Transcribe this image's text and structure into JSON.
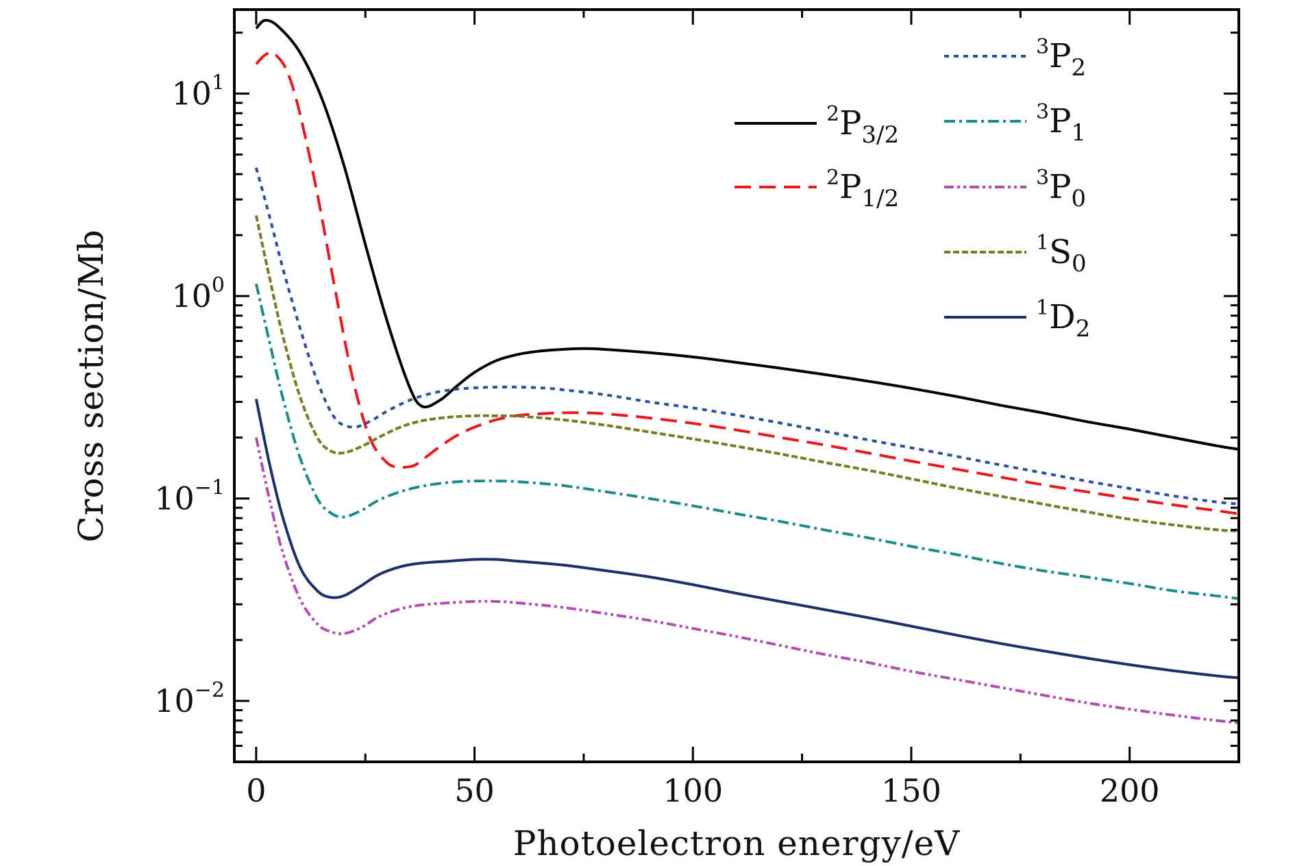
{
  "chart_data": {
    "type": "line",
    "title": "",
    "xlabel": "Photoelectron energy/eV",
    "ylabel": "Cross section/Mb",
    "xlim": [
      -5,
      225
    ],
    "ylim": [
      0.005,
      26
    ],
    "yscale": "log",
    "x_ticks": [
      0,
      50,
      100,
      150,
      200
    ],
    "y_ticks": [
      {
        "value": 0.01,
        "base": "10",
        "exponent": "−2"
      },
      {
        "value": 0.1,
        "base": "10",
        "exponent": "−1"
      },
      {
        "value": 1,
        "base": "10",
        "exponent": "0"
      },
      {
        "value": 10,
        "base": "10",
        "exponent": "1"
      }
    ],
    "grid": false,
    "legend_location": "top-right, two columns",
    "series": [
      {
        "name": "2P3/2",
        "label_sup": "2",
        "label_main": "P",
        "label_sub": "3/2",
        "color": "#000000",
        "style": "solid",
        "x": [
          0,
          2,
          5,
          10,
          15,
          20,
          25,
          30,
          35,
          38,
          42,
          46,
          50,
          55,
          60,
          65,
          70,
          75,
          80,
          90,
          100,
          110,
          120,
          130,
          140,
          150,
          160,
          170,
          180,
          190,
          200,
          210,
          220,
          225
        ],
        "y": [
          21,
          23,
          21.5,
          16,
          9.5,
          4.5,
          1.8,
          0.75,
          0.36,
          0.285,
          0.305,
          0.36,
          0.42,
          0.48,
          0.515,
          0.535,
          0.545,
          0.55,
          0.545,
          0.525,
          0.5,
          0.47,
          0.44,
          0.41,
          0.38,
          0.35,
          0.32,
          0.29,
          0.265,
          0.24,
          0.22,
          0.2,
          0.182,
          0.175
        ]
      },
      {
        "name": "2P1/2",
        "label_sup": "2",
        "label_main": "P",
        "label_sub": "1/2",
        "color": "#e8191f",
        "style": "dashed",
        "x": [
          0,
          2,
          4,
          7,
          10,
          14,
          18,
          22,
          26,
          30,
          33,
          36,
          38,
          42,
          46,
          50,
          55,
          60,
          65,
          70,
          75,
          80,
          90,
          100,
          110,
          120,
          130,
          140,
          150,
          160,
          170,
          180,
          190,
          200,
          210,
          220,
          225
        ],
        "y": [
          14,
          15.5,
          15.8,
          13,
          8,
          3.2,
          1.1,
          0.4,
          0.2,
          0.15,
          0.143,
          0.145,
          0.155,
          0.18,
          0.205,
          0.225,
          0.245,
          0.257,
          0.262,
          0.265,
          0.265,
          0.262,
          0.25,
          0.235,
          0.218,
          0.2,
          0.184,
          0.168,
          0.153,
          0.14,
          0.128,
          0.117,
          0.108,
          0.1,
          0.093,
          0.087,
          0.084
        ]
      },
      {
        "name": "3P2",
        "label_sup": "3",
        "label_main": "P",
        "label_sub": "2",
        "color": "#2c4fa3",
        "style": "dotted",
        "x": [
          0,
          3,
          6,
          10,
          14,
          18,
          22,
          26,
          30,
          35,
          40,
          45,
          50,
          55,
          60,
          65,
          70,
          80,
          90,
          100,
          110,
          120,
          130,
          140,
          150,
          160,
          170,
          180,
          190,
          200,
          210,
          220,
          225
        ],
        "y": [
          4.3,
          2.5,
          1.4,
          0.7,
          0.38,
          0.25,
          0.225,
          0.24,
          0.27,
          0.305,
          0.33,
          0.345,
          0.352,
          0.355,
          0.355,
          0.352,
          0.345,
          0.325,
          0.3,
          0.28,
          0.258,
          0.236,
          0.215,
          0.195,
          0.178,
          0.162,
          0.147,
          0.134,
          0.122,
          0.112,
          0.103,
          0.096,
          0.094
        ]
      },
      {
        "name": "3P1",
        "label_sup": "3",
        "label_main": "P",
        "label_sub": "1",
        "color": "#1e8a8a",
        "style": "dashdot",
        "x": [
          0,
          3,
          6,
          10,
          14,
          17,
          20,
          24,
          28,
          33,
          38,
          44,
          50,
          55,
          60,
          70,
          80,
          90,
          100,
          110,
          120,
          130,
          140,
          150,
          160,
          170,
          180,
          190,
          200,
          210,
          220,
          225
        ],
        "y": [
          1.15,
          0.6,
          0.32,
          0.16,
          0.1,
          0.085,
          0.081,
          0.087,
          0.098,
          0.108,
          0.115,
          0.12,
          0.122,
          0.122,
          0.121,
          0.116,
          0.108,
          0.1,
          0.092,
          0.084,
          0.077,
          0.07,
          0.064,
          0.058,
          0.053,
          0.048,
          0.044,
          0.041,
          0.038,
          0.035,
          0.033,
          0.032
        ]
      },
      {
        "name": "3P0",
        "label_sup": "3",
        "label_main": "P",
        "label_sub": "0",
        "color": "#b04fb0",
        "style": "dashdotdot",
        "x": [
          0,
          3,
          6,
          10,
          14,
          17,
          20,
          24,
          28,
          33,
          38,
          44,
          50,
          55,
          60,
          70,
          80,
          90,
          100,
          110,
          120,
          130,
          140,
          150,
          160,
          170,
          180,
          190,
          200,
          210,
          220,
          225
        ],
        "y": [
          0.2,
          0.1,
          0.055,
          0.032,
          0.024,
          0.022,
          0.0215,
          0.023,
          0.026,
          0.0285,
          0.0298,
          0.0305,
          0.031,
          0.031,
          0.0305,
          0.029,
          0.027,
          0.025,
          0.0228,
          0.0208,
          0.0188,
          0.017,
          0.0155,
          0.014,
          0.0128,
          0.0117,
          0.0107,
          0.0098,
          0.0091,
          0.0085,
          0.008,
          0.0078
        ]
      },
      {
        "name": "1S0",
        "label_sup": "1",
        "label_main": "S",
        "label_sub": "0",
        "color": "#7d7a25",
        "style": "shortdash",
        "x": [
          0,
          3,
          6,
          10,
          14,
          17,
          20,
          24,
          28,
          33,
          38,
          44,
          50,
          55,
          60,
          70,
          80,
          90,
          100,
          110,
          120,
          130,
          140,
          150,
          160,
          170,
          180,
          190,
          200,
          210,
          220,
          225
        ],
        "y": [
          2.5,
          1.25,
          0.65,
          0.32,
          0.2,
          0.172,
          0.168,
          0.18,
          0.2,
          0.225,
          0.242,
          0.252,
          0.256,
          0.256,
          0.255,
          0.245,
          0.23,
          0.213,
          0.197,
          0.181,
          0.166,
          0.151,
          0.138,
          0.125,
          0.113,
          0.103,
          0.094,
          0.086,
          0.079,
          0.074,
          0.07,
          0.069
        ]
      },
      {
        "name": "1D2",
        "label_sup": "1",
        "label_main": "D",
        "label_sub": "2",
        "color": "#1f2f6b",
        "style": "solid",
        "x": [
          0,
          3,
          6,
          10,
          14,
          17,
          20,
          24,
          28,
          33,
          38,
          44,
          50,
          55,
          60,
          70,
          80,
          90,
          100,
          110,
          120,
          130,
          140,
          150,
          160,
          170,
          180,
          190,
          200,
          210,
          220,
          225
        ],
        "y": [
          0.31,
          0.15,
          0.082,
          0.046,
          0.035,
          0.0325,
          0.033,
          0.037,
          0.042,
          0.046,
          0.048,
          0.049,
          0.05,
          0.05,
          0.049,
          0.047,
          0.044,
          0.041,
          0.0375,
          0.034,
          0.031,
          0.0283,
          0.0258,
          0.0234,
          0.0212,
          0.0193,
          0.0177,
          0.0163,
          0.0151,
          0.0141,
          0.0133,
          0.013
        ]
      }
    ]
  }
}
